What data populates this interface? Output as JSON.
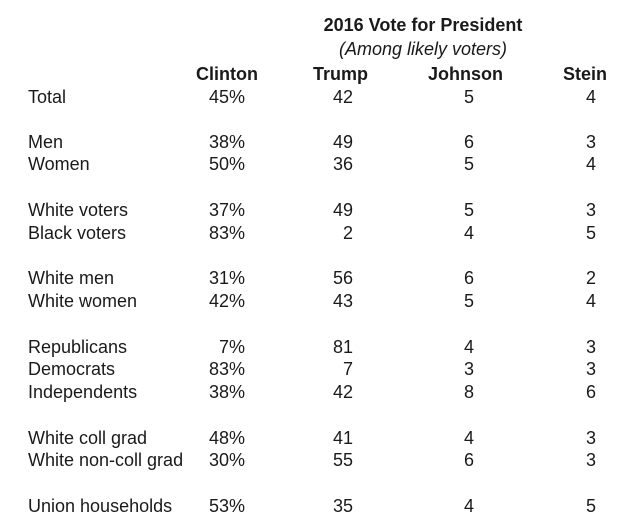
{
  "chart_data": {
    "type": "table",
    "title": "2016 Vote for President",
    "subtitle": "(Among likely voters)",
    "columns": [
      "Clinton",
      "Trump",
      "Johnson",
      "Stein"
    ],
    "rows": [
      {
        "label": "Total",
        "clinton": "45%",
        "trump": "42",
        "johnson": "5",
        "stein": "4"
      },
      {
        "label": "Men",
        "clinton": "38%",
        "trump": "49",
        "johnson": "6",
        "stein": "3"
      },
      {
        "label": "Women",
        "clinton": "50%",
        "trump": "36",
        "johnson": "5",
        "stein": "4"
      },
      {
        "label": "White voters",
        "clinton": "37%",
        "trump": "49",
        "johnson": "5",
        "stein": "3"
      },
      {
        "label": "Black voters",
        "clinton": "83%",
        "trump": "2",
        "johnson": "4",
        "stein": "5"
      },
      {
        "label": "White men",
        "clinton": "31%",
        "trump": "56",
        "johnson": "6",
        "stein": "2"
      },
      {
        "label": "White women",
        "clinton": "42%",
        "trump": "43",
        "johnson": "5",
        "stein": "4"
      },
      {
        "label": "Republicans",
        "clinton": "7%",
        "trump": "81",
        "johnson": "4",
        "stein": "3"
      },
      {
        "label": "Democrats",
        "clinton": "83%",
        "trump": "7",
        "johnson": "3",
        "stein": "3"
      },
      {
        "label": "Independents",
        "clinton": "38%",
        "trump": "42",
        "johnson": "8",
        "stein": "6"
      },
      {
        "label": "White coll grad",
        "clinton": "48%",
        "trump": "41",
        "johnson": "4",
        "stein": "3"
      },
      {
        "label": "White non-coll grad",
        "clinton": "30%",
        "trump": "55",
        "johnson": "6",
        "stein": "3"
      },
      {
        "label": "Union households",
        "clinton": "53%",
        "trump": "35",
        "johnson": "4",
        "stein": "5"
      }
    ]
  }
}
